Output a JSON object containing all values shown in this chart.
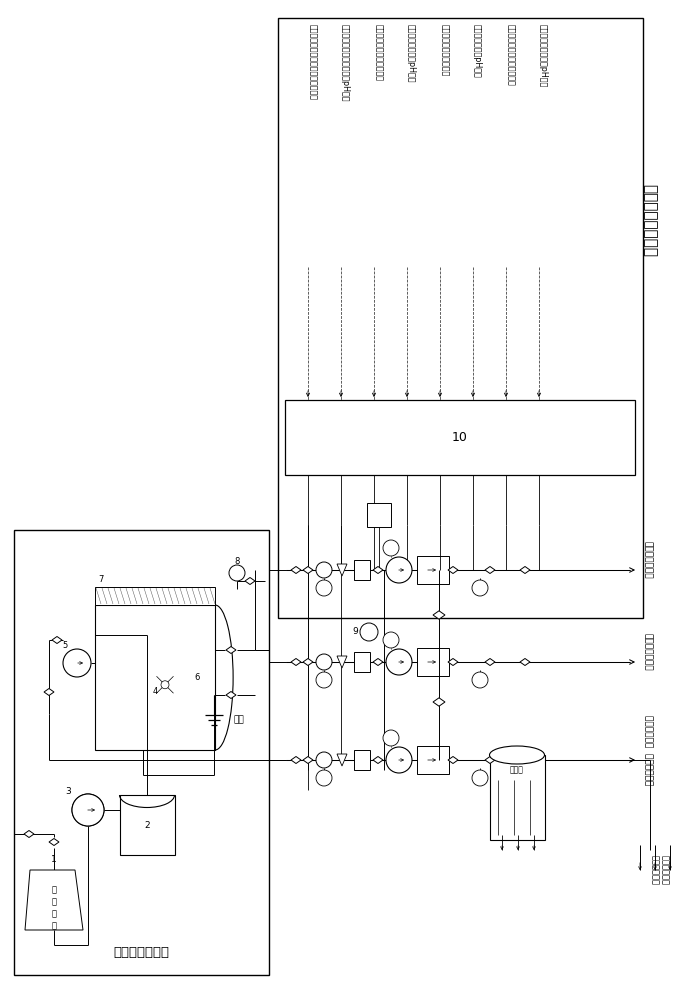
{
  "title": "加药自动控制系统",
  "left_box_title": "氨溶液制取系统",
  "control_box_label": "10",
  "bg": "#ffffff",
  "vertical_labels": [
    "凝结水精处理混床出水母管流量信号",
    "凝结水精处理混床出水母管pH信号",
    "除氧器下降管给水流量信号",
    "除氧器下降管给水pH信号",
    "闭冷水启动加药流量信号",
    "闭冷水启动加药pH信号",
    "低加疏水蒸汽侧疏水流量信号",
    "低加疏水蒸汽侧疏水pH信号"
  ],
  "right_labels": [
    "低加疏水蒸汽侧",
    "闭冷水启动加药",
    "凝结水精处理  混床出水母管"
  ],
  "ground_label": "地漏",
  "inlet_label": "进盐溶水",
  "deaerator_label": "除氧器",
  "inlet_water_label": "进盐溶水",
  "label_9": "9"
}
